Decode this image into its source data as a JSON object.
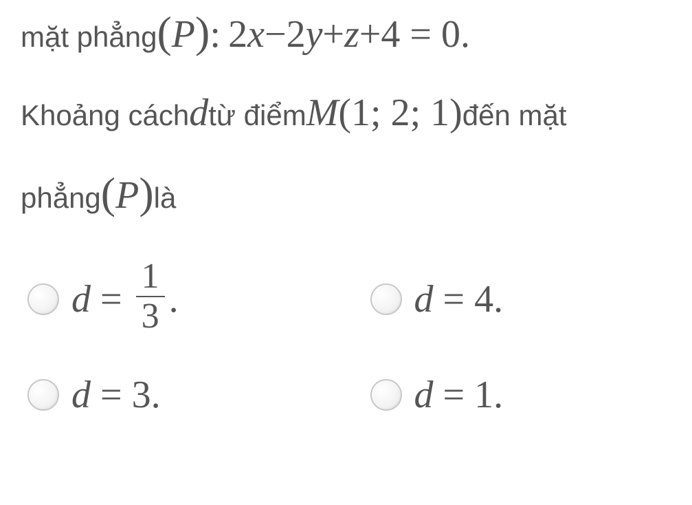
{
  "question": {
    "line1_prefix": "mặt phẳng ",
    "plane_expr_open": "(",
    "plane_var": "P",
    "plane_expr_close": ")",
    "colon_sp": " :  ",
    "equation": "2x − 2y + z + 4 = 0.",
    "eq_parts": {
      "p1": "2",
      "x": "x",
      "minus": " − ",
      "p2": "2",
      "y": "y",
      "plus1": " + ",
      "z": "z",
      "plus2": " + ",
      "p4": "4 = 0."
    },
    "line2_prefix": "Khoảng cách ",
    "d_var": "d",
    "line2_mid": " từ điểm ",
    "M_var": "M",
    "M_args": "(1; 2; 1)",
    "line2_suffix": " đến mặt",
    "line3_prefix": "phẳng ",
    "line3_suffix": " là"
  },
  "options": {
    "a": {
      "d": "d",
      "eq": " = ",
      "num": "1",
      "den": "3",
      "dot": "."
    },
    "b": {
      "d": "d",
      "eq": " = ",
      "val": "4."
    },
    "c": {
      "d": "d",
      "eq": " = ",
      "val": "3."
    },
    "d": {
      "d": "d",
      "eq": " = ",
      "val": "1."
    }
  },
  "style": {
    "text_color": "#555555",
    "background": "#ffffff",
    "text_fontsize": 42,
    "math_fontsize": 56,
    "radio_size": 46,
    "radio_border": "#c8c8c8"
  }
}
